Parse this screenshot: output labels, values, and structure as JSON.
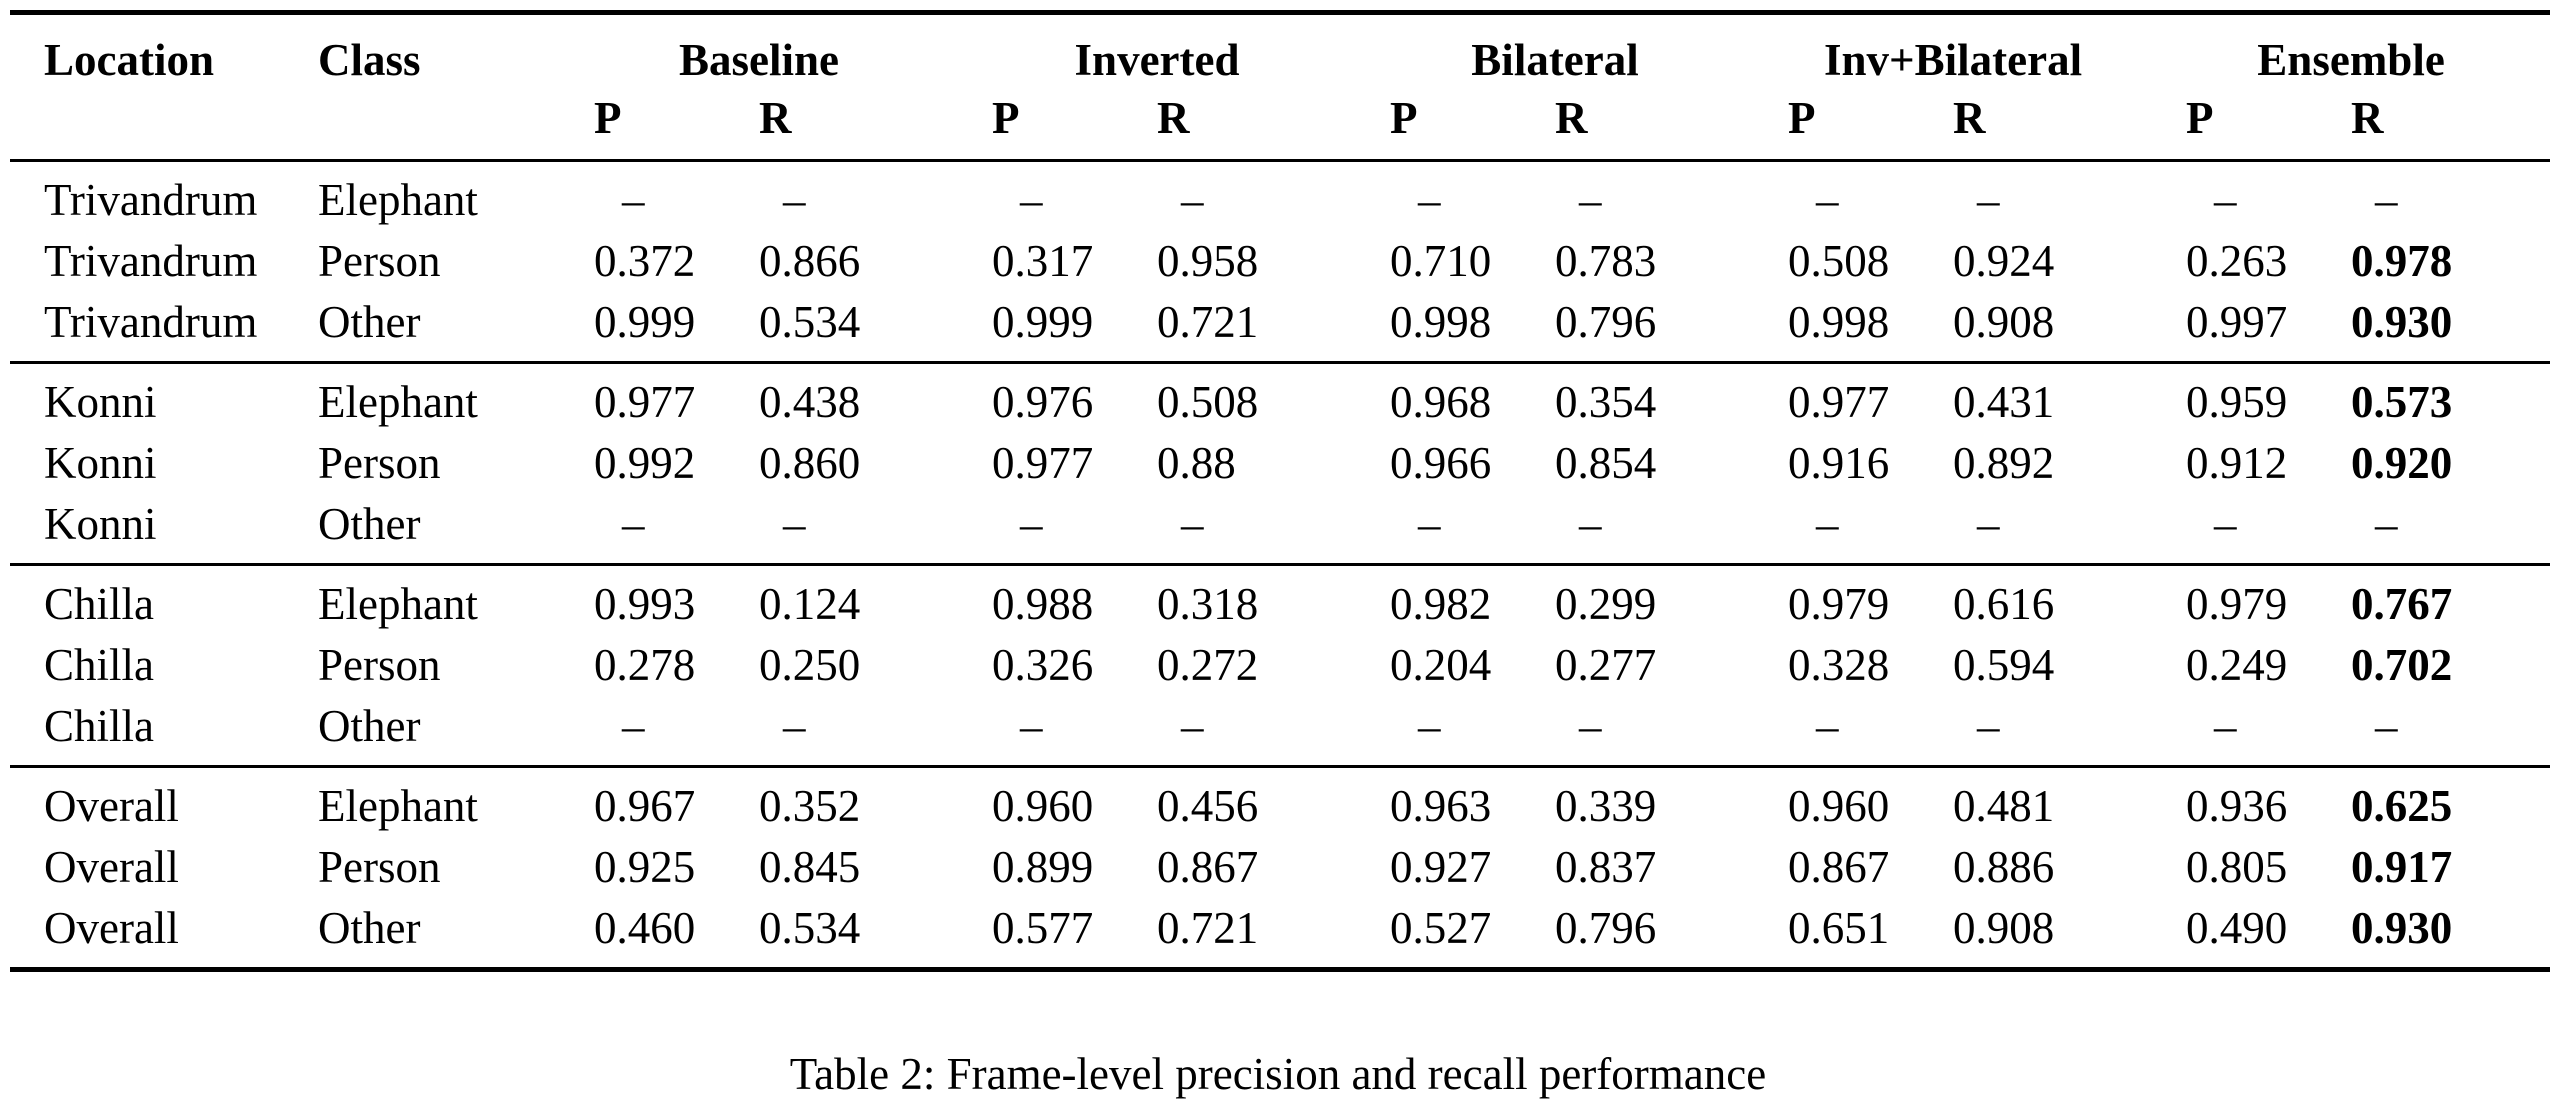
{
  "headers": {
    "location": "Location",
    "class": "Class",
    "groups": [
      "Baseline",
      "Inverted",
      "Bilateral",
      "Inv+Bilateral",
      "Ensemble"
    ],
    "p": "P",
    "r": "R"
  },
  "sections": [
    {
      "rows": [
        {
          "location": "Trivandrum",
          "class": "Elephant",
          "values": [
            "–",
            "–",
            "–",
            "–",
            "–",
            "–",
            "–",
            "–",
            "–",
            "–"
          ]
        },
        {
          "location": "Trivandrum",
          "class": "Person",
          "values": [
            "0.372",
            "0.866",
            "0.317",
            "0.958",
            "0.710",
            "0.783",
            "0.508",
            "0.924",
            "0.263",
            "0.978"
          ]
        },
        {
          "location": "Trivandrum",
          "class": "Other",
          "values": [
            "0.999",
            "0.534",
            "0.999",
            "0.721",
            "0.998",
            "0.796",
            "0.998",
            "0.908",
            "0.997",
            "0.930"
          ]
        }
      ]
    },
    {
      "rows": [
        {
          "location": "Konni",
          "class": "Elephant",
          "values": [
            "0.977",
            "0.438",
            "0.976",
            "0.508",
            "0.968",
            "0.354",
            "0.977",
            "0.431",
            "0.959",
            "0.573"
          ]
        },
        {
          "location": "Konni",
          "class": "Person",
          "values": [
            "0.992",
            "0.860",
            "0.977",
            "0.88",
            "0.966",
            "0.854",
            "0.916",
            "0.892",
            "0.912",
            "0.920"
          ]
        },
        {
          "location": "Konni",
          "class": "Other",
          "values": [
            "–",
            "–",
            "–",
            "–",
            "–",
            "–",
            "–",
            "–",
            "–",
            "–"
          ]
        }
      ]
    },
    {
      "rows": [
        {
          "location": "Chilla",
          "class": "Elephant",
          "values": [
            "0.993",
            "0.124",
            "0.988",
            "0.318",
            "0.982",
            "0.299",
            "0.979",
            "0.616",
            "0.979",
            "0.767"
          ]
        },
        {
          "location": "Chilla",
          "class": "Person",
          "values": [
            "0.278",
            "0.250",
            "0.326",
            "0.272",
            "0.204",
            "0.277",
            "0.328",
            "0.594",
            "0.249",
            "0.702"
          ]
        },
        {
          "location": "Chilla",
          "class": "Other",
          "values": [
            "–",
            "–",
            "–",
            "–",
            "–",
            "–",
            "–",
            "–",
            "–",
            "–"
          ]
        }
      ]
    },
    {
      "rows": [
        {
          "location": "Overall",
          "class": "Elephant",
          "values": [
            "0.967",
            "0.352",
            "0.960",
            "0.456",
            "0.963",
            "0.339",
            "0.960",
            "0.481",
            "0.936",
            "0.625"
          ]
        },
        {
          "location": "Overall",
          "class": "Person",
          "values": [
            "0.925",
            "0.845",
            "0.899",
            "0.867",
            "0.927",
            "0.837",
            "0.867",
            "0.886",
            "0.805",
            "0.917"
          ]
        },
        {
          "location": "Overall",
          "class": "Other",
          "values": [
            "0.460",
            "0.534",
            "0.577",
            "0.721",
            "0.527",
            "0.796",
            "0.651",
            "0.908",
            "0.490",
            "0.930"
          ]
        }
      ]
    }
  ],
  "caption": "Table 2: Frame-level precision and recall performance"
}
